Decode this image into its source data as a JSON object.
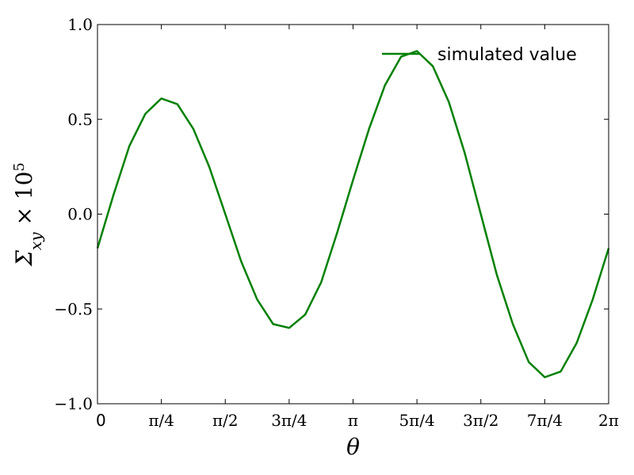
{
  "chart_data": {
    "type": "line",
    "xlabel": "θ",
    "ylabel_parts": {
      "base": "Σ",
      "sub": "xy",
      "times": " × 10",
      "sup": "5"
    },
    "xlim": [
      0,
      6.283185307
    ],
    "ylim": [
      -1.0,
      1.0
    ],
    "grid": false,
    "legend_position": "top-right",
    "x_ticks": [
      {
        "value": 0,
        "label": "0"
      },
      {
        "value": 0.785398,
        "label": "π/4"
      },
      {
        "value": 1.570796,
        "label": "π/2"
      },
      {
        "value": 2.356194,
        "label": "3π/4"
      },
      {
        "value": 3.141593,
        "label": "π"
      },
      {
        "value": 3.926991,
        "label": "5π/4"
      },
      {
        "value": 4.712389,
        "label": "3π/2"
      },
      {
        "value": 5.497787,
        "label": "7π/4"
      },
      {
        "value": 6.283185,
        "label": "2π"
      }
    ],
    "y_ticks": [
      {
        "value": 1.0,
        "label": "1.0"
      },
      {
        "value": 0.5,
        "label": "0.5"
      },
      {
        "value": 0.0,
        "label": "0.0"
      },
      {
        "value": -0.5,
        "label": "−0.5"
      },
      {
        "value": -1.0,
        "label": "−1.0"
      }
    ],
    "series": [
      {
        "name": "simulated value",
        "color": "#008000",
        "x": [
          0.0,
          0.196,
          0.393,
          0.589,
          0.785,
          0.982,
          1.178,
          1.374,
          1.571,
          1.767,
          1.963,
          2.16,
          2.356,
          2.553,
          2.749,
          2.945,
          3.142,
          3.338,
          3.534,
          3.731,
          3.927,
          4.123,
          4.32,
          4.516,
          4.712,
          4.909,
          5.105,
          5.301,
          5.498,
          5.694,
          5.89,
          6.087,
          6.283
        ],
        "y": [
          -0.18,
          0.1,
          0.36,
          0.53,
          0.61,
          0.58,
          0.45,
          0.25,
          0.0,
          -0.25,
          -0.45,
          -0.58,
          -0.6,
          -0.53,
          -0.36,
          -0.1,
          0.18,
          0.45,
          0.68,
          0.83,
          0.86,
          0.78,
          0.59,
          0.32,
          0.0,
          -0.32,
          -0.58,
          -0.78,
          -0.86,
          -0.83,
          -0.68,
          -0.45,
          -0.18
        ]
      }
    ]
  }
}
